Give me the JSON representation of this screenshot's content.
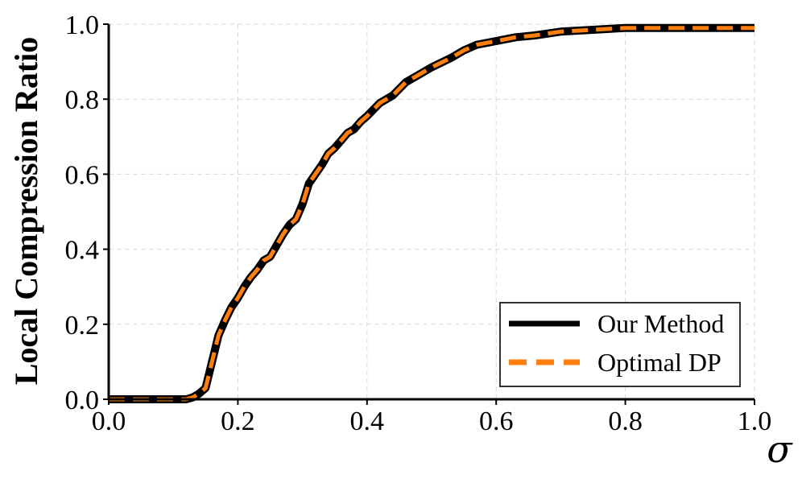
{
  "chart_data": {
    "type": "line",
    "title": "",
    "xlabel": "σ",
    "ylabel": "Local Compression Ratio",
    "xlim": [
      0.0,
      1.0
    ],
    "ylim": [
      0.0,
      1.0
    ],
    "xticks": [
      "0.0",
      "0.2",
      "0.4",
      "0.6",
      "0.8",
      "1.0"
    ],
    "yticks": [
      "0.0",
      "0.2",
      "0.4",
      "0.6",
      "0.8",
      "1.0"
    ],
    "grid": true,
    "legend_position": "lower-right",
    "series": [
      {
        "name": "Our Method",
        "color": "#000000",
        "style": "solid",
        "x": [
          0.0,
          0.05,
          0.1,
          0.12,
          0.13,
          0.14,
          0.15,
          0.16,
          0.17,
          0.18,
          0.19,
          0.2,
          0.21,
          0.22,
          0.23,
          0.24,
          0.25,
          0.26,
          0.27,
          0.28,
          0.29,
          0.3,
          0.31,
          0.32,
          0.33,
          0.34,
          0.35,
          0.36,
          0.37,
          0.38,
          0.39,
          0.4,
          0.42,
          0.44,
          0.46,
          0.48,
          0.5,
          0.53,
          0.55,
          0.57,
          0.6,
          0.63,
          0.66,
          0.7,
          0.75,
          0.8,
          0.85,
          0.9,
          0.95,
          1.0
        ],
        "y": [
          0.0,
          0.0,
          0.0,
          0.0,
          0.005,
          0.015,
          0.03,
          0.1,
          0.17,
          0.21,
          0.245,
          0.27,
          0.3,
          0.325,
          0.345,
          0.37,
          0.38,
          0.41,
          0.44,
          0.465,
          0.48,
          0.52,
          0.575,
          0.6,
          0.625,
          0.655,
          0.67,
          0.69,
          0.71,
          0.72,
          0.74,
          0.755,
          0.79,
          0.81,
          0.845,
          0.865,
          0.885,
          0.91,
          0.93,
          0.945,
          0.955,
          0.965,
          0.97,
          0.98,
          0.985,
          0.99,
          0.99,
          0.99,
          0.99,
          0.99
        ]
      },
      {
        "name": "Optimal DP",
        "color": "#ff7f0e",
        "style": "dashed",
        "x": [
          0.0,
          0.05,
          0.1,
          0.12,
          0.13,
          0.14,
          0.15,
          0.16,
          0.17,
          0.18,
          0.19,
          0.2,
          0.21,
          0.22,
          0.23,
          0.24,
          0.25,
          0.26,
          0.27,
          0.28,
          0.29,
          0.3,
          0.31,
          0.32,
          0.33,
          0.34,
          0.35,
          0.36,
          0.37,
          0.38,
          0.39,
          0.4,
          0.42,
          0.44,
          0.46,
          0.48,
          0.5,
          0.53,
          0.55,
          0.57,
          0.6,
          0.63,
          0.66,
          0.7,
          0.75,
          0.8,
          0.85,
          0.9,
          0.95,
          1.0
        ],
        "y": [
          0.0,
          0.0,
          0.0,
          0.0,
          0.005,
          0.015,
          0.03,
          0.1,
          0.17,
          0.21,
          0.245,
          0.27,
          0.3,
          0.325,
          0.345,
          0.37,
          0.38,
          0.41,
          0.44,
          0.465,
          0.48,
          0.52,
          0.575,
          0.6,
          0.625,
          0.655,
          0.67,
          0.69,
          0.71,
          0.72,
          0.74,
          0.755,
          0.79,
          0.81,
          0.845,
          0.865,
          0.885,
          0.91,
          0.93,
          0.945,
          0.955,
          0.965,
          0.97,
          0.98,
          0.985,
          0.99,
          0.99,
          0.99,
          0.99,
          0.99
        ]
      }
    ]
  }
}
